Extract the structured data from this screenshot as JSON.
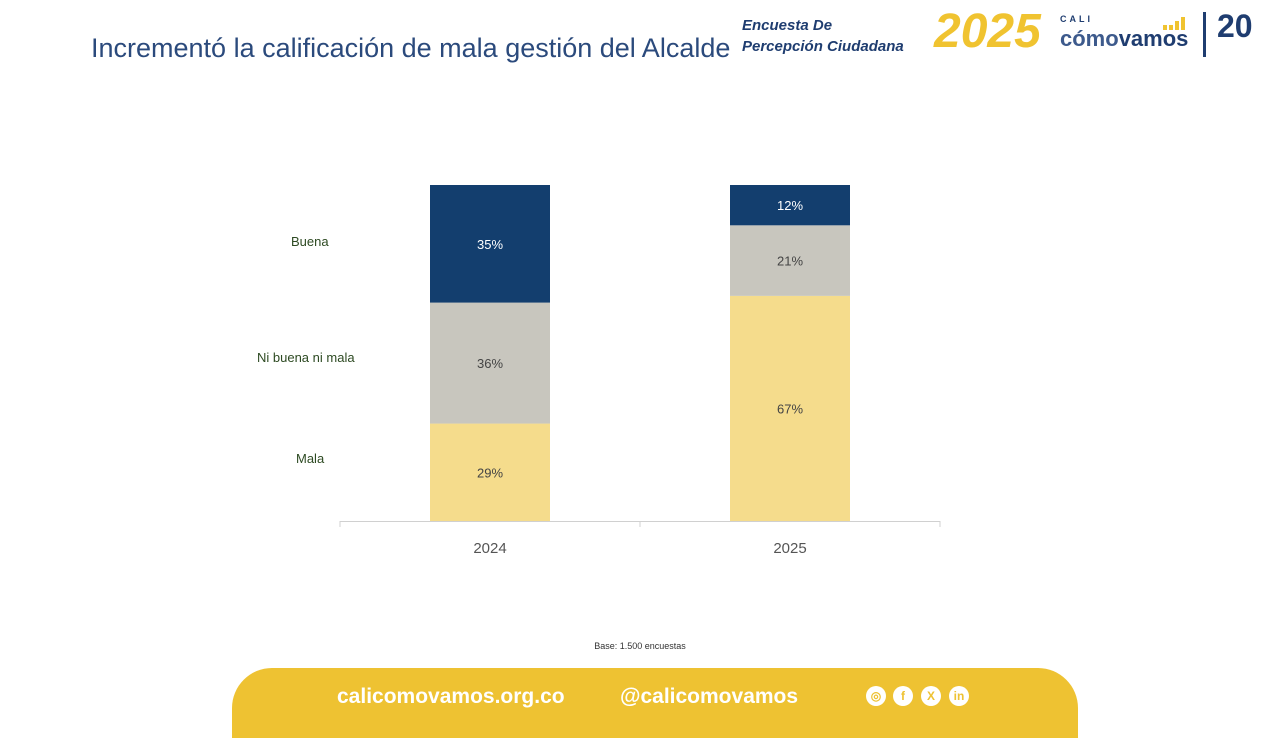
{
  "header": {
    "title": "Incrementó la calificación de mala gestión del Alcalde",
    "logo_survey_line1": "Encuesta De",
    "logo_survey_line2": "Percepción Ciudadana",
    "logo_survey_year": "2025",
    "logo_cali": "CALI",
    "logo_como": "cómo",
    "logo_vamos": "vamos",
    "logo_anniv": "20"
  },
  "chart_data": {
    "type": "bar",
    "stacked": true,
    "categories": [
      "2024",
      "2025"
    ],
    "series": [
      {
        "name": "Mala",
        "values": [
          29,
          67
        ],
        "color": "#f5dc8c",
        "label_color": "#444444"
      },
      {
        "name": "Ni buena ni mala",
        "values": [
          36,
          21
        ],
        "color": "#c8c6be",
        "label_color": "#444444"
      },
      {
        "name": "Buena",
        "values": [
          35,
          12
        ],
        "color": "#133e6e",
        "label_color": "#ffffff"
      }
    ],
    "ylim": [
      0,
      100
    ],
    "unit": "%",
    "grid": false,
    "legend": "left"
  },
  "note": "Base: 1.500 encuestas",
  "footer": {
    "website": "calicomovamos.org.co",
    "handle": "@calicomovamos",
    "social": [
      "instagram-icon",
      "facebook-icon",
      "x-icon",
      "linkedin-icon"
    ]
  },
  "colors": {
    "brand_blue": "#1f3d70",
    "brand_yellow": "#eec232"
  }
}
